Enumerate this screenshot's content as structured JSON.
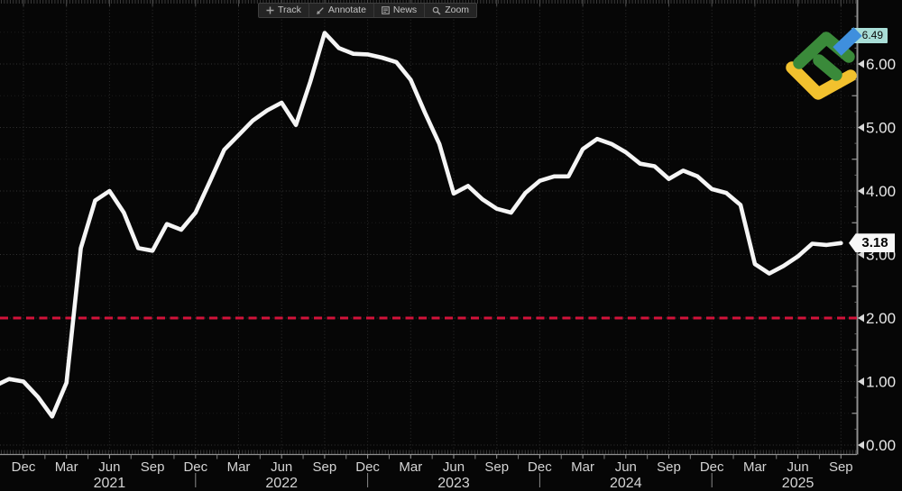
{
  "toolbar": {
    "items": [
      {
        "label": "Track",
        "icon": "plus-icon"
      },
      {
        "label": "Annotate",
        "icon": "pencil-icon"
      },
      {
        "label": "News",
        "icon": "news-icon"
      },
      {
        "label": "Zoom",
        "icon": "zoom-icon"
      }
    ]
  },
  "flags": {
    "last_value": "3.18",
    "high_value": "6.49"
  },
  "colors": {
    "background": "#060606",
    "line": "#f5f5f5",
    "target_line": "#d2123a",
    "grid_major": "#323232",
    "grid_minor": "#1b1b1b",
    "grid_vertical": "#2d2d2d",
    "axis_line": "#8f8f8f",
    "tick": "#9a9a9a",
    "comb_tick": "#3a3a3a",
    "axis_text": "#e8e8e8",
    "month_text": "#d4d4d4",
    "flag_last_bg": "#f7f7f7",
    "flag_high_bg": "#a9ded7",
    "logo_green": "#3a8a3a",
    "logo_yellow": "#f2c12e",
    "logo_blue": "#3f8fdd"
  },
  "chart_data": {
    "type": "line",
    "title": "",
    "xlabel": "",
    "ylabel": "",
    "x_axis_range": [
      "Oct 2020",
      "Sep 2025"
    ],
    "ylim": [
      -0.15,
      7.0
    ],
    "grid": true,
    "x": [
      "Oct 2020",
      "Nov 2020",
      "Dec 2020",
      "Jan 2021",
      "Feb 2021",
      "Mar 2021",
      "Apr 2021",
      "May 2021",
      "Jun 2021",
      "Jul 2021",
      "Aug 2021",
      "Sep 2021",
      "Oct 2021",
      "Nov 2021",
      "Dec 2021",
      "Jan 2022",
      "Feb 2022",
      "Mar 2022",
      "Apr 2022",
      "May 2022",
      "Jun 2022",
      "Jul 2022",
      "Aug 2022",
      "Sep 2022",
      "Oct 2022",
      "Nov 2022",
      "Dec 2022",
      "Jan 2023",
      "Feb 2023",
      "Mar 2023",
      "Apr 2023",
      "May 2023",
      "Jun 2023",
      "Jul 2023",
      "Aug 2023",
      "Sep 2023",
      "Oct 2023",
      "Nov 2023",
      "Dec 2023",
      "Jan 2024",
      "Feb 2024",
      "Mar 2024",
      "Apr 2024",
      "May 2024",
      "Jun 2024",
      "Jul 2024",
      "Aug 2024",
      "Sep 2024",
      "Oct 2024",
      "Nov 2024",
      "Dec 2024",
      "Jan 2025",
      "Feb 2025",
      "Mar 2025",
      "Apr 2025",
      "May 2025",
      "Jun 2025",
      "Jul 2025",
      "Aug 2025",
      "Sep 2025"
    ],
    "values": [
      0.93,
      1.04,
      1.0,
      0.76,
      0.45,
      0.98,
      3.1,
      3.85,
      4.0,
      3.66,
      3.1,
      3.06,
      3.48,
      3.39,
      3.66,
      4.15,
      4.65,
      4.88,
      5.11,
      5.27,
      5.39,
      5.04,
      5.72,
      6.49,
      6.25,
      6.16,
      6.15,
      6.1,
      6.03,
      5.75,
      5.23,
      4.74,
      3.96,
      4.08,
      3.87,
      3.72,
      3.66,
      3.97,
      4.16,
      4.23,
      4.23,
      4.66,
      4.82,
      4.74,
      4.61,
      4.43,
      4.39,
      4.19,
      4.32,
      4.23,
      4.03,
      3.97,
      3.78,
      2.85,
      2.7,
      2.82,
      2.97,
      3.17,
      3.15,
      3.18
    ],
    "y_ticks": [
      {
        "label": "0.00",
        "value": 0.0
      },
      {
        "label": "1.00",
        "value": 1.0
      },
      {
        "label": "2.00",
        "value": 2.0
      },
      {
        "label": "3.00",
        "value": 3.0
      },
      {
        "label": "4.00",
        "value": 4.0
      },
      {
        "label": "5.00",
        "value": 5.0
      },
      {
        "label": "6.00",
        "value": 6.0
      }
    ],
    "x_ticks": [
      {
        "label": "Dec",
        "index": 2
      },
      {
        "label": "Mar",
        "index": 5
      },
      {
        "label": "Jun",
        "index": 8
      },
      {
        "label": "Sep",
        "index": 11
      },
      {
        "label": "Dec",
        "index": 14
      },
      {
        "label": "Mar",
        "index": 17
      },
      {
        "label": "Jun",
        "index": 20
      },
      {
        "label": "Sep",
        "index": 23
      },
      {
        "label": "Dec",
        "index": 26
      },
      {
        "label": "Mar",
        "index": 29
      },
      {
        "label": "Jun",
        "index": 32
      },
      {
        "label": "Sep",
        "index": 35
      },
      {
        "label": "Dec",
        "index": 38
      },
      {
        "label": "Mar",
        "index": 41
      },
      {
        "label": "Jun",
        "index": 44
      },
      {
        "label": "Sep",
        "index": 47
      },
      {
        "label": "Dec",
        "index": 50
      },
      {
        "label": "Mar",
        "index": 53
      },
      {
        "label": "Jun",
        "index": 56
      },
      {
        "label": "Sep",
        "index": 59
      }
    ],
    "years": [
      {
        "label": "2021",
        "index": 8
      },
      {
        "label": "2022",
        "index": 20
      },
      {
        "label": "2023",
        "index": 32
      },
      {
        "label": "2024",
        "index": 44
      },
      {
        "label": "2025",
        "index": 56
      }
    ],
    "year_separator_indices": [
      14,
      26,
      38,
      50
    ],
    "target_line": {
      "value": 2.0,
      "style": "dashed"
    },
    "last_point": {
      "x": "Sep 2025",
      "value": 3.18
    },
    "high_point": {
      "x": "Sep 2022",
      "value": 6.49
    },
    "legend": []
  }
}
